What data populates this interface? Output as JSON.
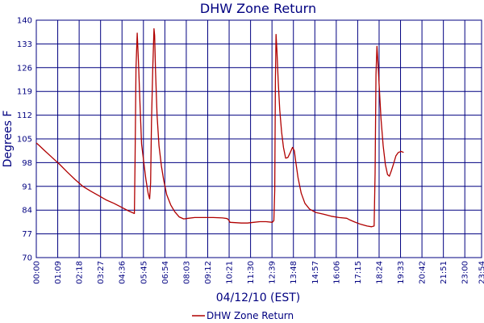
{
  "chart_data": {
    "type": "line",
    "title": "DHW Zone Return",
    "xlabel": "04/12/10 (EST)",
    "ylabel": "Degrees F",
    "ylim": [
      70,
      140
    ],
    "yticks": [
      70,
      77,
      84,
      91,
      98,
      105,
      112,
      119,
      126,
      133,
      140
    ],
    "xlim": [
      0,
      1434
    ],
    "xticks": [
      {
        "m": 0,
        "label": "00:00"
      },
      {
        "m": 69,
        "label": "01:09"
      },
      {
        "m": 138,
        "label": "02:18"
      },
      {
        "m": 207,
        "label": "03:27"
      },
      {
        "m": 276,
        "label": "04:36"
      },
      {
        "m": 345,
        "label": "05:45"
      },
      {
        "m": 414,
        "label": "06:54"
      },
      {
        "m": 483,
        "label": "08:03"
      },
      {
        "m": 552,
        "label": "09:12"
      },
      {
        "m": 621,
        "label": "10:21"
      },
      {
        "m": 690,
        "label": "11:30"
      },
      {
        "m": 759,
        "label": "12:39"
      },
      {
        "m": 828,
        "label": "13:48"
      },
      {
        "m": 897,
        "label": "14:57"
      },
      {
        "m": 966,
        "label": "16:06"
      },
      {
        "m": 1035,
        "label": "17:15"
      },
      {
        "m": 1104,
        "label": "18:24"
      },
      {
        "m": 1173,
        "label": "19:33"
      },
      {
        "m": 1242,
        "label": "20:42"
      },
      {
        "m": 1311,
        "label": "21:51"
      },
      {
        "m": 1380,
        "label": "23:00"
      },
      {
        "m": 1434,
        "label": "23:54"
      }
    ],
    "grid": true,
    "legend_position": "bottom",
    "series": [
      {
        "name": "DHW Zone Return",
        "color": "#b00000",
        "points": [
          [
            0,
            103.8
          ],
          [
            10,
            103.0
          ],
          [
            25,
            101.7
          ],
          [
            50,
            99.6
          ],
          [
            75,
            97.5
          ],
          [
            100,
            95.2
          ],
          [
            125,
            93.0
          ],
          [
            150,
            91.0
          ],
          [
            175,
            89.6
          ],
          [
            200,
            88.3
          ],
          [
            225,
            87.0
          ],
          [
            250,
            86.0
          ],
          [
            275,
            84.8
          ],
          [
            296,
            83.8
          ],
          [
            316,
            83.0
          ],
          [
            318,
            98.0
          ],
          [
            321,
            126.0
          ],
          [
            325,
            136.2
          ],
          [
            329,
            128.0
          ],
          [
            334,
            115.0
          ],
          [
            339,
            103.5
          ],
          [
            345,
            99.0
          ],
          [
            353,
            93.0
          ],
          [
            360,
            89.0
          ],
          [
            365,
            87.3
          ],
          [
            368,
            92.0
          ],
          [
            371,
            110.0
          ],
          [
            375,
            126.0
          ],
          [
            379,
            137.5
          ],
          [
            381,
            135.5
          ],
          [
            384,
            125.0
          ],
          [
            389,
            112.0
          ],
          [
            395,
            103.0
          ],
          [
            403,
            97.0
          ],
          [
            410,
            93.0
          ],
          [
            420,
            88.5
          ],
          [
            433,
            85.5
          ],
          [
            446,
            83.5
          ],
          [
            460,
            82.0
          ],
          [
            475,
            81.4
          ],
          [
            490,
            81.6
          ],
          [
            510,
            81.8
          ],
          [
            540,
            81.8
          ],
          [
            570,
            81.8
          ],
          [
            600,
            81.7
          ],
          [
            615,
            81.5
          ],
          [
            620,
            81.0
          ],
          [
            624,
            80.4
          ],
          [
            640,
            80.3
          ],
          [
            660,
            80.2
          ],
          [
            680,
            80.2
          ],
          [
            700,
            80.4
          ],
          [
            720,
            80.6
          ],
          [
            740,
            80.6
          ],
          [
            760,
            80.4
          ],
          [
            765,
            80.9
          ],
          [
            768,
            90.0
          ],
          [
            770,
            122.0
          ],
          [
            772,
            135.8
          ],
          [
            775,
            131.0
          ],
          [
            779,
            122.0
          ],
          [
            784,
            113.5
          ],
          [
            790,
            107.0
          ],
          [
            796,
            102.5
          ],
          [
            803,
            99.3
          ],
          [
            810,
            99.5
          ],
          [
            818,
            101.0
          ],
          [
            825,
            102.5
          ],
          [
            831,
            101.5
          ],
          [
            836,
            98.0
          ],
          [
            843,
            93.5
          ],
          [
            853,
            89.0
          ],
          [
            865,
            86.0
          ],
          [
            880,
            84.3
          ],
          [
            900,
            83.3
          ],
          [
            925,
            82.8
          ],
          [
            950,
            82.2
          ],
          [
            975,
            81.8
          ],
          [
            1000,
            81.6
          ],
          [
            1010,
            81.1
          ],
          [
            1025,
            80.5
          ],
          [
            1045,
            79.8
          ],
          [
            1065,
            79.3
          ],
          [
            1080,
            79.1
          ],
          [
            1088,
            79.3
          ],
          [
            1091,
            95.0
          ],
          [
            1094,
            124.0
          ],
          [
            1097,
            132.3
          ],
          [
            1100,
            128.0
          ],
          [
            1104,
            121.0
          ],
          [
            1110,
            111.0
          ],
          [
            1117,
            103.0
          ],
          [
            1124,
            97.5
          ],
          [
            1131,
            94.5
          ],
          [
            1137,
            94.0
          ],
          [
            1143,
            95.5
          ],
          [
            1150,
            97.5
          ],
          [
            1158,
            100.0
          ],
          [
            1166,
            101.0
          ],
          [
            1175,
            101.3
          ],
          [
            1183,
            101.0
          ]
        ]
      }
    ]
  }
}
